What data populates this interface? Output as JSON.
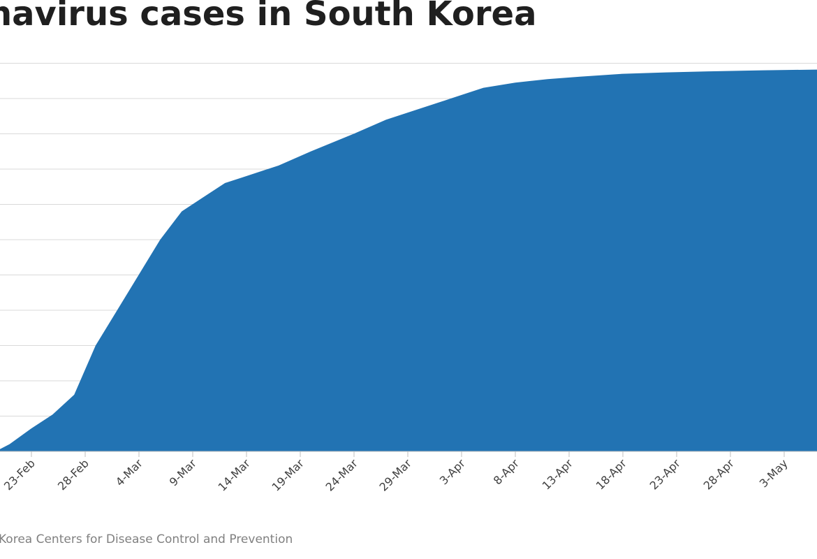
{
  "title": "onavirus cases in South Korea",
  "source": "Korea Centers for Disease Control and Prevention",
  "colors": {
    "area": "#2273b3",
    "grid": "#d9d9d9",
    "axis": "#bfbfbf",
    "text": "#404040"
  },
  "chart_data": {
    "type": "area",
    "title": "onavirus cases in South Korea",
    "xlabel": "",
    "ylabel": "",
    "x_tick_labels": [
      "23-Feb",
      "28-Feb",
      "4-Mar",
      "9-Mar",
      "14-Mar",
      "19-Mar",
      "24-Mar",
      "29-Mar",
      "3-Apr",
      "8-Apr",
      "13-Apr",
      "18-Apr",
      "23-Apr",
      "28-Apr",
      "3-May"
    ],
    "y_scale": "relative to the final value (y-axis labels not visible)",
    "grid": true,
    "ylim": [
      0,
      1.1
    ],
    "series": [
      {
        "x": [
          "18-Feb",
          "20-Feb",
          "21-Feb",
          "23-Feb",
          "25-Feb",
          "27-Feb",
          "29-Feb",
          "2-Mar",
          "4-Mar",
          "6-Mar",
          "8-Mar",
          "10-Mar",
          "12-Mar",
          "14-Mar",
          "17-Mar",
          "20-Mar",
          "24-Mar",
          "27-Mar",
          "30-Mar",
          "2-Apr",
          "5-Apr",
          "8-Apr",
          "11-Apr",
          "14-Apr",
          "18-Apr",
          "22-Apr",
          "26-Apr",
          "1-May",
          "6-May"
        ],
        "values": [
          0.0,
          0.004,
          0.02,
          0.064,
          0.104,
          0.16,
          0.3,
          0.4,
          0.5,
          0.6,
          0.68,
          0.72,
          0.76,
          0.78,
          0.81,
          0.85,
          0.9,
          0.94,
          0.97,
          1.0,
          1.03,
          1.045,
          1.055,
          1.062,
          1.07,
          1.074,
          1.077,
          1.08,
          1.082
        ]
      }
    ]
  }
}
